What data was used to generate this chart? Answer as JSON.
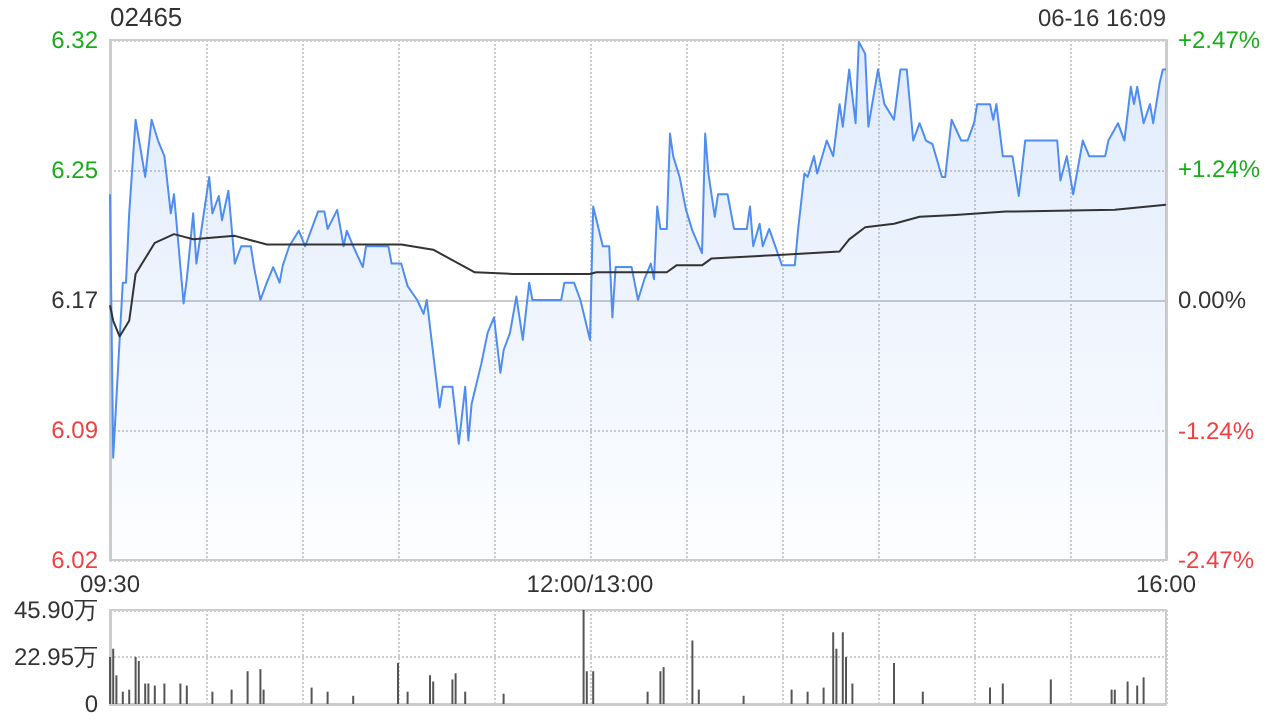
{
  "chart_data": [
    {
      "type": "area",
      "title": "02465",
      "annotations": [
        "06-16 16:09"
      ],
      "grid": true,
      "marker": "none",
      "line_style": "solid",
      "categories": [
        "09:30",
        null,
        null,
        null,
        null,
        null,
        null,
        null,
        null,
        null,
        null,
        null,
        null,
        null,
        null,
        null,
        null,
        null,
        null,
        null,
        null,
        null,
        null,
        null,
        null,
        null,
        null,
        null,
        null,
        null,
        null,
        null,
        null,
        null,
        null,
        null,
        null,
        null,
        null,
        null,
        null,
        null,
        null,
        null,
        null,
        null,
        null,
        null,
        null,
        null,
        null,
        null,
        null,
        null,
        null,
        null,
        null,
        null,
        null,
        null,
        null,
        null,
        null,
        null,
        null,
        null,
        null,
        null,
        null,
        null,
        null,
        null,
        null,
        null,
        null,
        null,
        null,
        null,
        null,
        null,
        null,
        null,
        null,
        null,
        null,
        null,
        null,
        null,
        null,
        null,
        null,
        null,
        null,
        null,
        null,
        null,
        null,
        null,
        null,
        null,
        null,
        null,
        null,
        null,
        null,
        null,
        null,
        null,
        null,
        null,
        null,
        null,
        null,
        null,
        null,
        null,
        null,
        null,
        null,
        null,
        null,
        null,
        null,
        null,
        null,
        null,
        null,
        null,
        null,
        null,
        null,
        null,
        null,
        null,
        null,
        null,
        null,
        null,
        null,
        null,
        null,
        null,
        null,
        null,
        null,
        null,
        null,
        null,
        null,
        null,
        "12:00/13:00",
        null,
        null,
        null,
        null,
        null,
        null,
        null,
        null,
        null,
        null,
        null,
        null,
        null,
        null,
        null,
        null,
        null,
        null,
        null,
        null,
        null,
        null,
        null,
        null,
        null,
        null,
        null,
        null,
        null,
        null,
        null,
        null,
        null,
        null,
        null,
        null,
        null,
        null,
        null,
        null,
        null,
        null,
        null,
        null,
        null,
        null,
        null,
        null,
        null,
        null,
        null,
        null,
        null,
        null,
        null,
        null,
        null,
        null,
        null,
        null,
        null,
        null,
        null,
        null,
        null,
        null,
        null,
        null,
        null,
        null,
        null,
        null,
        null,
        null,
        null,
        null,
        null,
        null,
        null,
        null,
        null,
        null,
        null,
        null,
        null,
        null,
        null,
        null,
        null,
        null,
        null,
        null,
        null,
        null,
        null,
        null,
        null,
        null,
        null,
        null,
        null,
        null,
        null,
        null,
        null,
        null,
        null,
        null,
        null,
        null,
        null,
        null,
        null,
        null,
        null,
        null,
        null,
        null,
        null,
        null,
        null,
        null,
        null,
        null,
        null,
        null,
        null,
        null,
        null,
        null,
        null,
        null,
        null,
        null,
        null,
        null,
        null,
        null,
        null,
        null,
        null,
        null,
        null,
        null,
        null,
        null,
        null,
        null,
        null,
        null,
        null,
        null,
        null,
        null,
        null,
        null,
        null,
        null,
        null,
        null,
        null,
        null,
        null,
        null,
        null,
        null,
        null,
        null,
        null,
        null,
        null,
        null,
        null,
        null,
        null,
        null,
        null,
        null,
        null,
        "16:00"
      ],
      "ylim": [
        6.02,
        6.32
      ],
      "yticks": [
        6.02,
        {
          "value": 6.095,
          "label": "6.09"
        },
        6.17,
        {
          "value": 6.245,
          "label": "6.25"
        },
        6.32
      ],
      "y2lim": [
        -2.47,
        2.47
      ],
      "y2ticks": [
        {
          "value": -2.47,
          "label": "-2.47%"
        },
        {
          "value": -1.24,
          "label": "-1.24%"
        },
        {
          "value": 0,
          "label": "0.00%"
        },
        {
          "value": 1.24,
          "label": "+1.24%"
        },
        {
          "value": 2.47,
          "label": "+2.47%"
        }
      ],
      "series": [
        {
          "color": "#4f8ef0",
          "values": [
            6.231,
            6.079,
            null,
            6.147,
            6.18,
            6.18,
            6.22,
            null,
            6.274,
            null,
            null,
            6.241,
            null,
            6.274,
            null,
            6.262,
            null,
            6.253,
            null,
            6.22,
            6.231,
            null,
            null,
            6.168,
            6.182,
            null,
            6.22,
            6.191,
            null,
            null,
            null,
            6.241,
            6.22,
            null,
            6.23,
            6.216,
            null,
            6.233,
            null,
            6.191,
            null,
            6.201,
            null,
            null,
            6.201,
            6.189,
            null,
            6.17,
            null,
            6.18,
            null,
            6.189,
            null,
            6.18,
            6.19,
            null,
            6.201,
            null,
            null,
            6.21,
            null,
            6.201,
            null,
            null,
            null,
            6.221,
            null,
            6.221,
            6.211,
            null,
            null,
            6.222,
            null,
            6.201,
            6.21,
            null,
            6.201,
            null,
            null,
            6.189,
            6.201,
            null,
            null,
            null,
            null,
            null,
            null,
            6.201,
            6.191,
            null,
            null,
            6.191,
            null,
            6.178,
            null,
            null,
            6.17,
            null,
            6.162,
            6.17,
            null,
            null,
            null,
            6.108,
            6.12,
            null,
            null,
            6.12,
            null,
            6.087,
            null,
            6.12,
            6.089,
            6.11,
            null,
            null,
            6.133,
            null,
            6.151,
            null,
            6.16,
            null,
            6.128,
            6.141,
            null,
            6.151,
            null,
            6.172,
            null,
            6.147,
            null,
            6.18,
            6.17,
            null,
            null,
            null,
            null,
            null,
            null,
            null,
            null,
            6.17,
            6.18,
            null,
            null,
            6.18,
            null,
            6.17,
            null,
            null,
            6.147,
            6.224,
            null,
            null,
            6.201,
            null,
            6.201,
            6.16,
            6.189,
            null,
            null,
            null,
            null,
            6.189,
            null,
            6.17,
            null,
            6.182,
            null,
            6.191,
            6.182,
            6.224,
            6.211,
            null,
            6.211,
            6.266,
            6.253,
            null,
            6.241,
            null,
            6.222,
            null,
            6.21,
            null,
            null,
            6.197,
            6.266,
            6.243,
            null,
            6.218,
            6.231,
            null,
            null,
            6.231,
            null,
            6.211,
            null,
            null,
            null,
            6.211,
            6.224,
            6.201,
            null,
            6.214,
            6.201,
            null,
            6.211,
            null,
            null,
            null,
            6.19,
            null,
            null,
            null,
            6.19,
            6.21,
            null,
            6.243,
            6.241,
            null,
            6.253,
            6.243,
            null,
            null,
            6.262,
            null,
            6.253,
            null,
            6.283,
            6.27,
            null,
            6.303,
            null,
            6.272,
            6.319,
            null,
            6.312,
            6.27,
            null,
            null,
            6.303,
            null,
            6.283,
            null,
            null,
            6.274,
            null,
            6.303,
            null,
            6.303,
            null,
            6.262,
            null,
            6.272,
            null,
            6.262,
            null,
            6.26,
            null,
            null,
            6.241,
            6.241,
            null,
            6.274,
            null,
            null,
            6.262,
            null,
            6.262,
            null,
            6.272,
            6.283,
            null,
            null,
            null,
            6.283,
            6.274,
            6.283,
            null,
            6.253,
            null,
            null,
            6.253,
            null,
            6.23,
            null,
            6.262,
            null,
            null,
            null,
            null,
            null,
            null,
            null,
            null,
            null,
            6.262,
            6.239,
            null,
            6.253,
            null,
            6.231,
            null,
            null,
            6.262,
            null,
            6.253,
            null,
            null,
            null,
            null,
            6.253,
            6.262,
            null,
            null,
            6.272,
            null,
            6.262,
            null,
            6.293,
            6.283,
            6.293,
            null,
            6.272,
            null,
            6.283,
            6.272,
            null,
            6.295,
            6.303,
            6.303
          ]
        },
        {
          "type": "line",
          "color": "#333333",
          "values": [
            6.167,
            6.158,
            null,
            6.149,
            null,
            null,
            6.158,
            null,
            6.185,
            null,
            null,
            null,
            null,
            null,
            6.203,
            null,
            null,
            null,
            null,
            null,
            6.208,
            null,
            null,
            null,
            null,
            null,
            6.205,
            null,
            null,
            null,
            null,
            null,
            null,
            null,
            null,
            null,
            null,
            null,
            null,
            6.207,
            null,
            null,
            null,
            null,
            null,
            null,
            null,
            null,
            null,
            6.202,
            null,
            null,
            null,
            null,
            null,
            null,
            null,
            null,
            null,
            null,
            null,
            null,
            null,
            null,
            null,
            null,
            null,
            null,
            null,
            null,
            null,
            null,
            null,
            null,
            null,
            null,
            null,
            null,
            null,
            null,
            null,
            null,
            null,
            null,
            null,
            null,
            null,
            null,
            null,
            null,
            null,
            6.202,
            null,
            null,
            null,
            null,
            null,
            null,
            null,
            null,
            null,
            6.199,
            null,
            null,
            null,
            null,
            null,
            null,
            null,
            6.191,
            null,
            null,
            null,
            null,
            6.186,
            null,
            null,
            null,
            null,
            null,
            null,
            null,
            null,
            null,
            null,
            null,
            6.185,
            null,
            null,
            null,
            null,
            null,
            null,
            null,
            null,
            null,
            null,
            null,
            null,
            null,
            null,
            null,
            null,
            null,
            null,
            null,
            null,
            null,
            null,
            null,
            6.185,
            null,
            6.186,
            null,
            null,
            null,
            null,
            null,
            null,
            null,
            null,
            null,
            null,
            null,
            null,
            null,
            null,
            null,
            null,
            null,
            null,
            null,
            null,
            null,
            6.186,
            null,
            null,
            6.19,
            null,
            null,
            null,
            null,
            null,
            null,
            null,
            6.19,
            null,
            null,
            6.194,
            null,
            null,
            null,
            null,
            null,
            null,
            null,
            null,
            null,
            null,
            null,
            null,
            null,
            null,
            null,
            null,
            null,
            null,
            null,
            null,
            6.196,
            null,
            null,
            null,
            null,
            null,
            null,
            null,
            null,
            null,
            null,
            null,
            null,
            null,
            null,
            null,
            null,
            null,
            null,
            6.198,
            null,
            null,
            6.205,
            null,
            null,
            null,
            null,
            6.212,
            null,
            null,
            null,
            null,
            null,
            null,
            null,
            null,
            6.214,
            null,
            null,
            null,
            null,
            null,
            null,
            null,
            6.218,
            null,
            null,
            null,
            null,
            null,
            null,
            null,
            null,
            null,
            null,
            6.219,
            null,
            null,
            null,
            null,
            null,
            null,
            null,
            null,
            null,
            null,
            null,
            null,
            null,
            null,
            null,
            6.221,
            null,
            null,
            null,
            null,
            null,
            null,
            null,
            null,
            null,
            null,
            null,
            null,
            null,
            null,
            null,
            null,
            null,
            null,
            null,
            null,
            null,
            null,
            null,
            null,
            null,
            null,
            null,
            null,
            null,
            null,
            null,
            null,
            null,
            6.222,
            null,
            null,
            null,
            null,
            null,
            null,
            null,
            null,
            null,
            null,
            null,
            null,
            null,
            null,
            null,
            6.225
          ]
        }
      ]
    },
    {
      "type": "bar",
      "grid": true,
      "tick_labels": "y",
      "categories": [
        null,
        null,
        null,
        null,
        null,
        null,
        null,
        null,
        null,
        null,
        null,
        null,
        null,
        null,
        null,
        null,
        null,
        null,
        null,
        null,
        null,
        null,
        null,
        null,
        null,
        null,
        null,
        null,
        null,
        null,
        null,
        null,
        null,
        null,
        null,
        null,
        null,
        null,
        null,
        null,
        null,
        null,
        null,
        null,
        null,
        null,
        null,
        null,
        null,
        null,
        null,
        null,
        null,
        null,
        null,
        null,
        null,
        null,
        null,
        null,
        null,
        null,
        null,
        null,
        null,
        null,
        null,
        null,
        null,
        null,
        null,
        null,
        null,
        null,
        null,
        null,
        null,
        null,
        null,
        null,
        null,
        null,
        null,
        null,
        null,
        null,
        null,
        null,
        null,
        null,
        null,
        null,
        null,
        null,
        null,
        null,
        null,
        null,
        null,
        null,
        null,
        null,
        null,
        null,
        null,
        null,
        null,
        null,
        null,
        null,
        null,
        null,
        null,
        null,
        null,
        null,
        null,
        null,
        null,
        null,
        null,
        null,
        null,
        null,
        null,
        null,
        null,
        null,
        null,
        null,
        null,
        null,
        null,
        null,
        null,
        null,
        null,
        null,
        null,
        null,
        null,
        null,
        null,
        null,
        null,
        null,
        null,
        null,
        null,
        null,
        null,
        null,
        null,
        null,
        null,
        null,
        null,
        null,
        null,
        null,
        null,
        null,
        null,
        null,
        null,
        null,
        null,
        null,
        null,
        null,
        null,
        null,
        null,
        null,
        null,
        null,
        null,
        null,
        null,
        null,
        null,
        null,
        null,
        null,
        null,
        null,
        null,
        null,
        null,
        null,
        null,
        null,
        null,
        null,
        null,
        null,
        null,
        null,
        null,
        null,
        null,
        null,
        null,
        null,
        null,
        null,
        null,
        null,
        null,
        null,
        null,
        null,
        null,
        null,
        null,
        null,
        null,
        null,
        null,
        null,
        null,
        null,
        null,
        null,
        null,
        null,
        null,
        null,
        null,
        null,
        null,
        null,
        null,
        null,
        null,
        null,
        null,
        null,
        null,
        null,
        null,
        null,
        null,
        null,
        null,
        null,
        null,
        null,
        null,
        null,
        null,
        null,
        null,
        null,
        null,
        null,
        null,
        null,
        null,
        null,
        null,
        null,
        null,
        null,
        null,
        null,
        null,
        null,
        null,
        null,
        null,
        null,
        null,
        null,
        null,
        null,
        null,
        null,
        null,
        null,
        null,
        null,
        null,
        null,
        null,
        null,
        null,
        null,
        null,
        null,
        null,
        null,
        null,
        null,
        null,
        null,
        null,
        null,
        null,
        null,
        null,
        null,
        null,
        null,
        null,
        null,
        null,
        null,
        null,
        null,
        null,
        null,
        null,
        null,
        null,
        null,
        null,
        null,
        null,
        null,
        null,
        null,
        null,
        null,
        null,
        null,
        null,
        null,
        null,
        null,
        null
      ],
      "ylim": [
        0,
        45.9
      ],
      "yticks": [
        0,
        {
          "value": 22.95,
          "label": "22.95万"
        },
        {
          "value": 45.9,
          "label": "45.90万"
        }
      ],
      "series": [
        {
          "color": "#555555",
          "values": [
            23,
            27,
            14,
            null,
            6,
            null,
            7,
            null,
            23,
            21,
            null,
            10,
            10,
            null,
            9,
            null,
            null,
            10,
            null,
            null,
            null,
            null,
            10,
            null,
            9,
            null,
            null,
            null,
            null,
            null,
            null,
            null,
            6,
            null,
            null,
            null,
            null,
            null,
            7,
            null,
            null,
            null,
            null,
            16,
            null,
            null,
            null,
            17,
            7,
            null,
            null,
            null,
            null,
            null,
            null,
            null,
            null,
            null,
            null,
            null,
            null,
            null,
            null,
            8,
            null,
            null,
            null,
            null,
            6,
            null,
            null,
            null,
            null,
            null,
            null,
            null,
            4,
            null,
            null,
            null,
            null,
            null,
            null,
            null,
            null,
            null,
            null,
            null,
            null,
            null,
            20,
            null,
            null,
            6,
            null,
            null,
            null,
            null,
            null,
            null,
            14,
            11,
            null,
            null,
            null,
            null,
            null,
            12,
            15,
            null,
            null,
            6,
            null,
            null,
            null,
            null,
            null,
            null,
            null,
            null,
            null,
            null,
            null,
            5,
            null,
            null,
            null,
            null,
            null,
            null,
            null,
            null,
            null,
            null,
            null,
            null,
            null,
            null,
            null,
            null,
            null,
            null,
            null,
            null,
            null,
            null,
            null,
            null,
            45.9,
            16,
            null,
            16,
            null,
            null,
            null,
            null,
            null,
            null,
            null,
            null,
            null,
            null,
            null,
            null,
            null,
            null,
            null,
            null,
            6,
            null,
            null,
            null,
            16,
            18,
            null,
            null,
            null,
            null,
            null,
            null,
            null,
            null,
            31,
            null,
            7,
            null,
            null,
            null,
            null,
            null,
            null,
            null,
            null,
            null,
            null,
            null,
            null,
            null,
            4,
            null,
            null,
            null,
            null,
            null,
            null,
            null,
            null,
            null,
            null,
            null,
            null,
            null,
            null,
            7,
            null,
            null,
            null,
            null,
            6,
            null,
            null,
            null,
            null,
            8,
            null,
            null,
            35,
            27,
            null,
            35,
            23,
            null,
            10,
            null,
            null,
            null,
            null,
            null,
            null,
            null,
            null,
            null,
            null,
            null,
            null,
            20,
            null,
            null,
            null,
            null,
            null,
            null,
            null,
            null,
            6,
            null,
            null,
            null,
            null,
            null,
            null,
            null,
            null,
            null,
            null,
            null,
            null,
            null,
            null,
            null,
            null,
            null,
            null,
            null,
            null,
            8,
            null,
            null,
            null,
            10,
            null,
            null,
            null,
            null,
            null,
            null,
            null,
            null,
            null,
            null,
            null,
            null,
            null,
            null,
            12,
            null,
            null,
            null,
            null,
            null,
            null,
            null,
            null,
            null,
            null,
            null,
            null,
            null,
            null,
            null,
            null,
            null,
            null,
            7,
            7,
            null,
            null,
            null,
            11,
            null,
            null,
            9,
            null,
            13,
            null,
            null,
            null,
            null,
            null,
            null,
            null
          ]
        }
      ]
    }
  ]
}
